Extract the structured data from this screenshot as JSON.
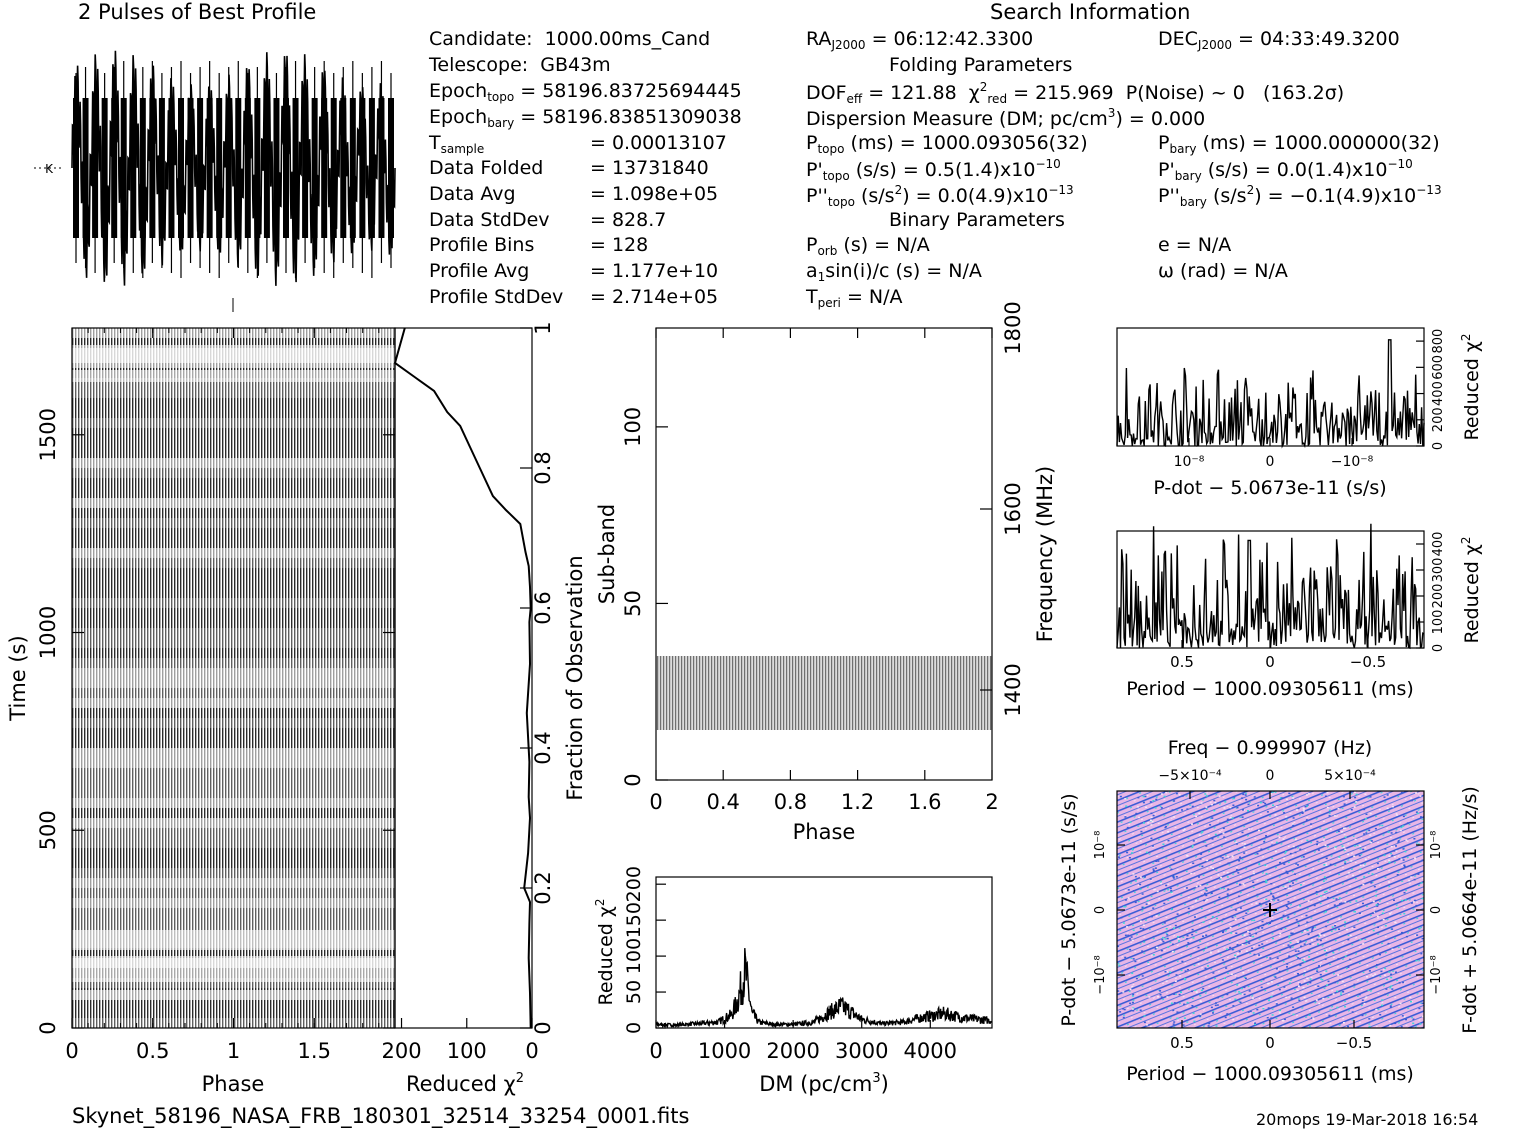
{
  "header": {
    "profile_title": "2 Pulses of Best Profile",
    "search_title": "Search Information",
    "footer_filename": "Skynet_58196_NASA_FRB_180301_32514_33254_0001.fits",
    "footer_stamp": "20mops 19-Mar-2018 16:54"
  },
  "candidate": {
    "candidate_label": "Candidate:",
    "candidate_value": "1000.00ms_Cand",
    "telescope_label": "Telescope:",
    "telescope_value": "GB43m",
    "epoch_topo_label": "Epoch",
    "epoch_topo_sub": "topo",
    "epoch_topo_value": "= 58196.83725694445",
    "epoch_bary_label": "Epoch",
    "epoch_bary_sub": "bary",
    "epoch_bary_value": "= 58196.83851309038",
    "tsample_label": "T",
    "tsample_sub": "sample",
    "tsample_value": "=   0.00013107",
    "data_folded_label": "Data Folded",
    "data_folded_value": "=   13731840",
    "data_avg_label": "Data Avg",
    "data_avg_value": "=   1.098e+05",
    "data_stddev_label": "Data StdDev",
    "data_stddev_value": "=   828.7",
    "profile_bins_label": "Profile Bins",
    "profile_bins_value": "=   128",
    "profile_avg_label": "Profile Avg",
    "profile_avg_value": "=   1.177e+10",
    "profile_stddev_label": "Profile StdDev",
    "profile_stddev_value": "=   2.714e+05"
  },
  "search": {
    "ra_label": "RA",
    "ra_sub": "J2000",
    "ra_value": "= 06:12:42.3300",
    "dec_label": "DEC",
    "dec_sub": "J2000",
    "dec_value": "= 04:33:49.3200",
    "folding_title": "Folding Parameters",
    "dof_label": "DOF",
    "dof_sub": "eff",
    "dof_value": "= 121.88",
    "chi_label": "χ",
    "chi_sup": "2",
    "chi_sub": "red",
    "chi_value": "= 215.969",
    "pnoise": "P(Noise) ~ 0",
    "sigma": "(163.2σ)",
    "dm_line_a": "Dispersion Measure (DM; pc/cm",
    "dm_line_sup": "3",
    "dm_line_b": ") = 0.000",
    "ptopo_label": "P",
    "ptopo_sub": "topo",
    "ptopo_value": "(ms) =  1000.093056(32)",
    "pbary_label": "P",
    "pbary_sub": "bary",
    "pbary_value": "(ms) =  1000.000000(32)",
    "pdtopo_label": "P'",
    "pdtopo_sub": "topo",
    "pdtopo_value": "(s/s) =  0.5(1.4)x10",
    "pdtopo_exp": "−10",
    "pdbary_label": "P'",
    "pdbary_sub": "bary",
    "pdbary_value": "(s/s) = 0.0(1.4)x10",
    "pdbary_exp": "−10",
    "pddtopo_label": "P''",
    "pddtopo_sub": "topo",
    "pddtopo_value_a": "(s/s",
    "pddtopo_value_sup": "2",
    "pddtopo_value_b": ") = 0.0(4.9)x10",
    "pddtopo_exp": "−13",
    "pddbary_label": "P''",
    "pddbary_sub": "bary",
    "pddbary_value_a": "(s/s",
    "pddbary_value_sup": "2",
    "pddbary_value_b": ") = −0.1(4.9)x10",
    "pddbary_exp": "−13",
    "binary_title": "Binary Parameters",
    "porb_label": "P",
    "porb_sub": "orb",
    "porb_value": "(s) = N/A",
    "e_value": "e = N/A",
    "a1_label": "a",
    "a1_sub": "1",
    "a1_value": "sin(i)/c (s) = N/A",
    "omega_value": "ω (rad) = N/A",
    "tperi_label": "T",
    "tperi_sub": "peri",
    "tperi_value": "= N/A"
  },
  "colors": {
    "ink": "#000000",
    "grey_dark": "#3a3a3a",
    "grey_light": "#e6e6e6",
    "map_bg": "#e6b8e6",
    "map_blue": "#3a5cd6",
    "map_cyan": "#3fd6d6"
  },
  "chart_data": [
    {
      "type": "line",
      "title": "2 Pulses of Best Profile",
      "x": "Phase 0–2 (profile repeated twice)",
      "description_values": "highly modulated profile, ~34 peaks over 2 pulses",
      "ylim": [
        0,
        1
      ]
    },
    {
      "type": "heatmap",
      "xlabel": "Phase",
      "ylabel": "Time (s)",
      "xlim": [
        0,
        2
      ],
      "ylim": [
        0,
        1770
      ],
      "x_ticks": [
        "0",
        "0.5",
        "1",
        "1.5"
      ],
      "y_ticks": [
        "0",
        "500",
        "1000",
        "1500"
      ]
    },
    {
      "type": "line",
      "xlabel": "Reduced χ²",
      "ylabel": "Fraction of Observation",
      "xlim": [
        200,
        0
      ],
      "ylim": [
        0,
        1
      ],
      "x_ticks": [
        "200",
        "100",
        "0"
      ],
      "y_ticks": [
        "0",
        "0.2",
        "0.4",
        "0.6",
        "0.8",
        "1"
      ],
      "x": [
        2,
        3,
        5,
        4,
        3,
        12,
        6,
        3,
        5,
        4,
        8,
        3,
        4,
        2,
        3,
        5,
        10,
        18,
        40,
        60,
        80,
        95,
        110,
        130,
        150,
        180,
        210,
        195
      ],
      "y": [
        0.0,
        0.05,
        0.1,
        0.15,
        0.18,
        0.2,
        0.25,
        0.3,
        0.33,
        0.38,
        0.45,
        0.52,
        0.58,
        0.6,
        0.63,
        0.66,
        0.68,
        0.72,
        0.74,
        0.76,
        0.8,
        0.83,
        0.86,
        0.88,
        0.91,
        0.93,
        0.95,
        1.0
      ]
    },
    {
      "type": "heatmap",
      "xlabel": "Phase",
      "ylabel": "Sub-band",
      "ylabel_right": "Frequency (MHz)",
      "xlim": [
        0,
        2
      ],
      "ylim": [
        0,
        128
      ],
      "x_ticks": [
        "0",
        "0.4",
        "0.8",
        "1.2",
        "1.6",
        "2"
      ],
      "y_ticks": [
        "0",
        "50",
        "100"
      ],
      "y_ticks_right": [
        "1400",
        "1600",
        "1800"
      ],
      "filled_subbands": [
        14,
        35
      ]
    },
    {
      "type": "line",
      "xlabel": "DM (pc/cm³)",
      "ylabel": "Reduced χ²",
      "xlim": [
        0,
        4900
      ],
      "ylim": [
        0,
        210
      ],
      "x_ticks": [
        "0",
        "1000",
        "2000",
        "3000",
        "4000"
      ],
      "y_ticks": [
        "0",
        "50",
        "100",
        "150",
        "200"
      ],
      "x": [
        0,
        300,
        600,
        900,
        1100,
        1200,
        1300,
        1350,
        1400,
        1500,
        1700,
        2000,
        2300,
        2500,
        2700,
        2800,
        3000,
        3300,
        3600,
        3900,
        4200,
        4500,
        4900
      ],
      "y": [
        5,
        4,
        6,
        8,
        18,
        40,
        80,
        50,
        20,
        8,
        5,
        5,
        8,
        20,
        30,
        25,
        12,
        6,
        8,
        15,
        20,
        14,
        10
      ]
    },
    {
      "type": "line",
      "xlabel": "P-dot − 5.0673e-11 (s/s)",
      "ylabel": "Reduced χ²",
      "x_ticks": [
        "10⁻⁸",
        "0",
        "−10⁻⁸"
      ],
      "y_ticks": [
        "0",
        "200",
        "400",
        "600",
        "800"
      ],
      "ylim": [
        0,
        900
      ],
      "peak_near": "−1.6×10⁻⁸ (right side)"
    },
    {
      "type": "line",
      "xlabel": "Period − 1000.09305611 (ms)",
      "ylabel": "Reduced χ²",
      "x_ticks": [
        "0.5",
        "0",
        "−0.5"
      ],
      "y_ticks": [
        "0",
        "100",
        "200",
        "300",
        "400"
      ],
      "ylim": [
        0,
        450
      ]
    },
    {
      "type": "heatmap",
      "title_top": "Freq − 0.999907 (Hz)",
      "xlabel": "Period − 1000.09305611 (ms)",
      "ylabel": "P-dot − 5.0673e-11 (s/s)",
      "ylabel_right": "F-dot + 5.0664e-11 (Hz/s)",
      "x_ticks": [
        "0.5",
        "0",
        "−0.5"
      ],
      "x_ticks_top": [
        "−5×10⁻⁴",
        "0",
        "5×10⁻⁴"
      ],
      "y_ticks": [
        "10⁻⁸",
        "0",
        "−10⁻⁸"
      ],
      "y_ticks_right": [
        "−10⁻⁸",
        "0",
        "10⁻⁸"
      ],
      "marker": "+ at (0, 0)"
    }
  ]
}
